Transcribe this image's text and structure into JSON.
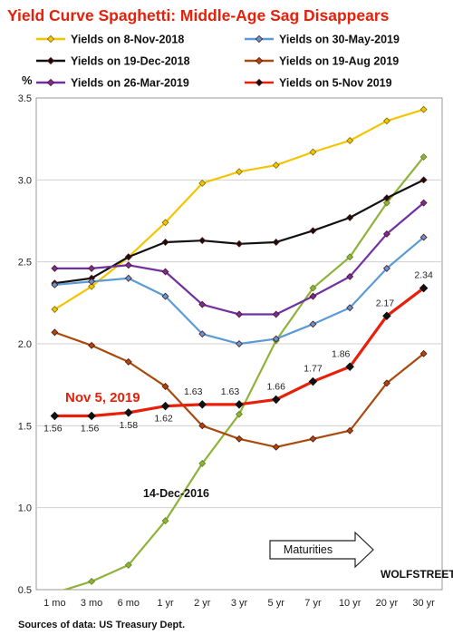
{
  "chart_data": {
    "type": "line",
    "title": "Yield Curve Spaghetti: Middle-Age Sag Disappears",
    "ylabel": "%",
    "ylim": [
      0.5,
      3.5
    ],
    "yticks": [
      "0.5",
      "1.0",
      "1.5",
      "2.0",
      "2.5",
      "3.0",
      "3.5"
    ],
    "categories": [
      "1 mo",
      "3 mo",
      "6 mo",
      "1 yr",
      "2 yr",
      "3 yr",
      "5 yr",
      "7 yr",
      "10 yr",
      "20 yr",
      "30 yr"
    ],
    "grid": "horizontal",
    "legend_position": "top",
    "series": [
      {
        "name": "Yields on 8-Nov-2018",
        "color": "#f5c400",
        "values": [
          2.21,
          2.35,
          2.53,
          2.74,
          2.98,
          3.05,
          3.09,
          3.17,
          3.24,
          3.36,
          3.43
        ]
      },
      {
        "name": "Yields on 30-May-2019",
        "color": "#5b9bd5",
        "values": [
          2.36,
          2.38,
          2.4,
          2.29,
          2.06,
          2.0,
          2.03,
          2.12,
          2.22,
          2.46,
          2.65
        ]
      },
      {
        "name": "Yields on 19-Dec-2018",
        "color": "#111111",
        "values": [
          2.37,
          2.4,
          2.53,
          2.62,
          2.63,
          2.61,
          2.62,
          2.69,
          2.77,
          2.89,
          3.0
        ]
      },
      {
        "name": "Yields on 19-Aug 2019",
        "color": "#a84a0c",
        "values": [
          2.07,
          1.99,
          1.89,
          1.74,
          1.5,
          1.42,
          1.37,
          1.42,
          1.47,
          1.76,
          1.94
        ]
      },
      {
        "name": "Yields on 26-Mar-2019",
        "color": "#7030a0",
        "values": [
          2.46,
          2.46,
          2.48,
          2.44,
          2.24,
          2.18,
          2.18,
          2.29,
          2.41,
          2.67,
          2.86
        ]
      },
      {
        "name": "Yields on 5-Nov 2019",
        "color": "#e8200a",
        "values": [
          1.56,
          1.56,
          1.58,
          1.62,
          1.63,
          1.63,
          1.66,
          1.77,
          1.86,
          2.17,
          2.34
        ]
      },
      {
        "name": "",
        "color": "#8fb33a",
        "values": [
          0.48,
          0.55,
          0.65,
          0.92,
          1.27,
          1.57,
          2.02,
          2.34,
          2.53,
          2.86,
          3.14
        ]
      }
    ],
    "data_labels": [
      "1.56",
      "1.56",
      "1.58",
      "1.62",
      "1.63",
      "1.63",
      "1.66",
      "1.77",
      "1.86",
      "2.17",
      "2.34"
    ],
    "annotations": {
      "highlight": "Nov 5, 2019",
      "old_curve": "14-Dec-2016",
      "arrow": "Maturities"
    }
  },
  "footer": {
    "source": "Sources of data: US Treasury Dept.",
    "brand": "WOLFSTREET.com"
  }
}
